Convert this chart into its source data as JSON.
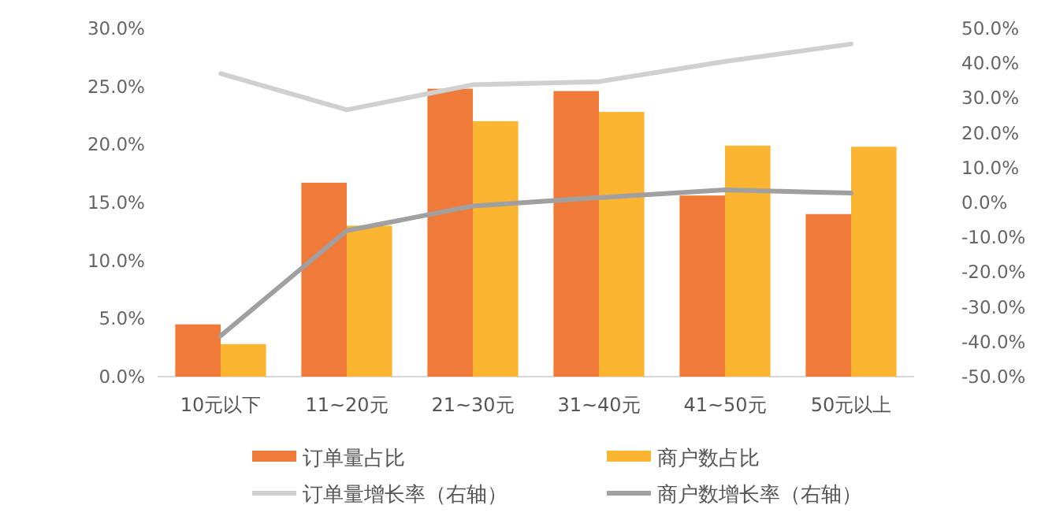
{
  "chart_data": {
    "type": "bar",
    "categories": [
      "10元以下",
      "11~20元",
      "21~30元",
      "31~40元",
      "41~50元",
      "50元以上"
    ],
    "series": [
      {
        "name": "订单量占比",
        "color": "#f07a3a",
        "values": [
          4.5,
          16.7,
          24.8,
          24.6,
          15.6,
          14.0
        ]
      },
      {
        "name": "商户数占比",
        "color": "#fbb531",
        "values": [
          2.8,
          13.0,
          22.0,
          22.8,
          19.9,
          19.8
        ]
      },
      {
        "name": "订单量增长率（右轴）",
        "type": "line",
        "axis": "y2",
        "color": "#d0d0d0",
        "values": [
          37,
          26.6,
          33.8,
          34.7,
          40.5,
          45.5
        ]
      },
      {
        "name": "商户数增长率（右轴）",
        "type": "line",
        "axis": "y2",
        "color": "#a0a0a0",
        "values": [
          -38.3,
          -8.1,
          -1,
          1.4,
          3.6,
          2.7
        ]
      }
    ],
    "ylim": [
      0,
      30
    ],
    "yticks": [
      {
        "value": 0,
        "label": "0.0%"
      },
      {
        "value": 5,
        "label": "5.0%"
      },
      {
        "value": 10,
        "label": "10.0%"
      },
      {
        "value": 15,
        "label": "15.0%"
      },
      {
        "value": 20,
        "label": "20.0%"
      },
      {
        "value": 25,
        "label": "25.0%"
      },
      {
        "value": 30,
        "label": "30.0%"
      }
    ],
    "y2lim": [
      -50,
      50
    ],
    "y2ticks": [
      {
        "value": 50,
        "label": "50.0%"
      },
      {
        "value": 40,
        "label": "40.0%"
      },
      {
        "value": 30,
        "label": "30.0%"
      },
      {
        "value": 20,
        "label": "20.0%"
      },
      {
        "value": 10,
        "label": "10.0%"
      },
      {
        "value": 0,
        "label": "0.0%"
      },
      {
        "value": -10,
        "label": "-10.0%"
      },
      {
        "value": -20,
        "label": "-20.0%"
      },
      {
        "value": -30,
        "label": "-30.0%"
      },
      {
        "value": -40,
        "label": "-40.0%"
      },
      {
        "value": -50,
        "label": "-50.0%"
      }
    ],
    "grid": false,
    "legend": "bottom"
  }
}
